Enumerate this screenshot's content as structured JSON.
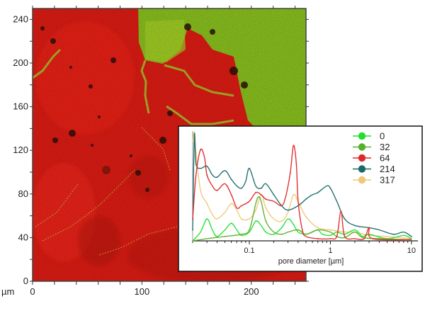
{
  "chart_data": [
    {
      "type": "heatmap",
      "title": "",
      "xlabel": "",
      "ylabel": "",
      "unit_label": "µm",
      "xlim": [
        0,
        250
      ],
      "ylim": [
        0,
        250
      ],
      "x_ticks": [
        0,
        100,
        200
      ],
      "y_ticks": [
        0,
        40,
        80,
        120,
        160,
        200,
        240
      ],
      "colors": {
        "dominant": "#d01a12",
        "secondary": "#7fb21c"
      },
      "grid": false
    },
    {
      "type": "line",
      "title": "",
      "xlabel": "pore diameter [µm]",
      "ylabel": "",
      "x_scale": "log",
      "xlim": [
        0.02,
        12
      ],
      "ylim": [
        0,
        1
      ],
      "x_ticks": [
        0.1,
        1,
        10
      ],
      "x_tick_labels": [
        "0.1",
        "1",
        "10"
      ],
      "legend_position": "top-right",
      "series": [
        {
          "name": "0",
          "color": "#22e02c",
          "points": [
            [
              0.02,
              0
            ],
            [
              0.025,
              0.08
            ],
            [
              0.03,
              0.2
            ],
            [
              0.035,
              0.1
            ],
            [
              0.04,
              0.04
            ],
            [
              0.05,
              0.1
            ],
            [
              0.06,
              0.16
            ],
            [
              0.07,
              0.1
            ],
            [
              0.08,
              0.05
            ],
            [
              0.1,
              0.08
            ],
            [
              0.12,
              0.18
            ],
            [
              0.14,
              0.14
            ],
            [
              0.16,
              0.08
            ],
            [
              0.2,
              0.06
            ],
            [
              0.25,
              0.12
            ],
            [
              0.3,
              0.2
            ],
            [
              0.35,
              0.15
            ],
            [
              0.4,
              0.08
            ],
            [
              0.5,
              0.06
            ],
            [
              0.6,
              0.08
            ],
            [
              0.7,
              0.1
            ],
            [
              0.8,
              0.06
            ],
            [
              1,
              0.05
            ],
            [
              1.2,
              0.08
            ],
            [
              1.5,
              0.06
            ],
            [
              2,
              0.1
            ],
            [
              2.5,
              0.04
            ],
            [
              3,
              0.06
            ],
            [
              5,
              0.02
            ],
            [
              8,
              0.05
            ],
            [
              10,
              0.02
            ]
          ]
        },
        {
          "name": "32",
          "color": "#58b02a",
          "points": [
            [
              0.02,
              0
            ],
            [
              0.03,
              0.02
            ],
            [
              0.05,
              0.04
            ],
            [
              0.08,
              0.06
            ],
            [
              0.1,
              0.1
            ],
            [
              0.12,
              0.34
            ],
            [
              0.13,
              0.4
            ],
            [
              0.14,
              0.36
            ],
            [
              0.16,
              0.18
            ],
            [
              0.2,
              0.08
            ],
            [
              0.25,
              0.06
            ],
            [
              0.3,
              0.08
            ],
            [
              0.4,
              0.1
            ],
            [
              0.5,
              0.06
            ],
            [
              0.7,
              0.1
            ],
            [
              1,
              0.08
            ],
            [
              1.2,
              0.04
            ],
            [
              1.5,
              0.03
            ],
            [
              2,
              0.08
            ],
            [
              2.5,
              0.03
            ],
            [
              4,
              0.02
            ],
            [
              10,
              0.01
            ]
          ]
        },
        {
          "name": "64",
          "color": "#e02828",
          "points": [
            [
              0.02,
              0.2
            ],
            [
              0.022,
              0.6
            ],
            [
              0.025,
              0.83
            ],
            [
              0.028,
              0.76
            ],
            [
              0.03,
              0.6
            ],
            [
              0.035,
              0.5
            ],
            [
              0.04,
              0.46
            ],
            [
              0.05,
              0.52
            ],
            [
              0.06,
              0.42
            ],
            [
              0.07,
              0.3
            ],
            [
              0.08,
              0.32
            ],
            [
              0.1,
              0.36
            ],
            [
              0.12,
              0.44
            ],
            [
              0.14,
              0.42
            ],
            [
              0.16,
              0.38
            ],
            [
              0.2,
              0.36
            ],
            [
              0.25,
              0.32
            ],
            [
              0.28,
              0.4
            ],
            [
              0.32,
              0.62
            ],
            [
              0.35,
              0.87
            ],
            [
              0.38,
              0.7
            ],
            [
              0.4,
              0.36
            ],
            [
              0.45,
              0.1
            ],
            [
              0.5,
              0.04
            ],
            [
              0.7,
              0.02
            ],
            [
              1,
              0.02
            ],
            [
              1.2,
              0.04
            ],
            [
              1.35,
              0.27
            ],
            [
              1.5,
              0.04
            ],
            [
              2,
              0.02
            ],
            [
              2.6,
              0.02
            ],
            [
              3,
              0.12
            ],
            [
              3.3,
              0.02
            ],
            [
              10,
              0.01
            ]
          ]
        },
        {
          "name": "214",
          "color": "#1a6a6a",
          "points": [
            [
              0.02,
              0.1
            ],
            [
              0.021,
              0.96
            ],
            [
              0.022,
              0.7
            ],
            [
              0.025,
              0.66
            ],
            [
              0.03,
              0.68
            ],
            [
              0.035,
              0.6
            ],
            [
              0.04,
              0.58
            ],
            [
              0.05,
              0.64
            ],
            [
              0.06,
              0.56
            ],
            [
              0.07,
              0.5
            ],
            [
              0.08,
              0.48
            ],
            [
              0.09,
              0.54
            ],
            [
              0.1,
              0.66
            ],
            [
              0.12,
              0.5
            ],
            [
              0.14,
              0.48
            ],
            [
              0.16,
              0.52
            ],
            [
              0.2,
              0.42
            ],
            [
              0.25,
              0.32
            ],
            [
              0.3,
              0.28
            ],
            [
              0.4,
              0.32
            ],
            [
              0.5,
              0.38
            ],
            [
              0.6,
              0.42
            ],
            [
              0.7,
              0.44
            ],
            [
              0.9,
              0.5
            ],
            [
              1,
              0.48
            ],
            [
              1.2,
              0.36
            ],
            [
              1.5,
              0.2
            ],
            [
              2,
              0.14
            ],
            [
              3,
              0.12
            ],
            [
              4,
              0.1
            ],
            [
              6,
              0.06
            ],
            [
              8,
              0.08
            ],
            [
              10,
              0.04
            ]
          ]
        },
        {
          "name": "317",
          "color": "#f0c878",
          "points": [
            [
              0.02,
              0.9
            ],
            [
              0.021,
              0.99
            ],
            [
              0.022,
              0.8
            ],
            [
              0.025,
              0.46
            ],
            [
              0.03,
              0.34
            ],
            [
              0.035,
              0.24
            ],
            [
              0.04,
              0.2
            ],
            [
              0.05,
              0.26
            ],
            [
              0.06,
              0.34
            ],
            [
              0.07,
              0.28
            ],
            [
              0.08,
              0.2
            ],
            [
              0.1,
              0.2
            ],
            [
              0.12,
              0.28
            ],
            [
              0.14,
              0.42
            ],
            [
              0.16,
              0.3
            ],
            [
              0.2,
              0.2
            ],
            [
              0.25,
              0.18
            ],
            [
              0.3,
              0.26
            ],
            [
              0.35,
              0.42
            ],
            [
              0.4,
              0.36
            ],
            [
              0.5,
              0.22
            ],
            [
              0.7,
              0.12
            ],
            [
              1,
              0.1
            ],
            [
              1.5,
              0.08
            ],
            [
              2,
              0.08
            ],
            [
              3,
              0.05
            ],
            [
              5,
              0.04
            ],
            [
              10,
              0.02
            ]
          ]
        }
      ]
    }
  ]
}
